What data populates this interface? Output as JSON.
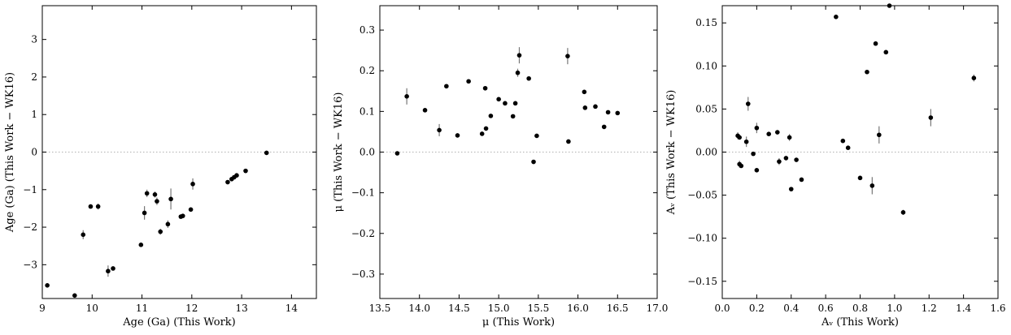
{
  "chart_data": [
    {
      "type": "scatter",
      "xlabel": "Age (Ga)   (This Work)",
      "ylabel": "Age (Ga)   (This Work − WK16)",
      "xlim": [
        9,
        14.5
      ],
      "ylim": [
        -3.9,
        3.9
      ],
      "xticks": [
        9,
        10,
        11,
        12,
        13,
        14
      ],
      "yticks": [
        -3,
        -2,
        -1,
        0,
        1,
        2,
        3
      ],
      "xticklabels": [
        "9",
        "10",
        "11",
        "12",
        "13",
        "14"
      ],
      "yticklabels": [
        "−3",
        "−2",
        "−1",
        "0",
        "1",
        "2",
        "3"
      ],
      "zero_line": 0,
      "points": [
        {
          "x": 9.1,
          "y": -3.55,
          "err": 0
        },
        {
          "x": 9.65,
          "y": -3.82,
          "err": 0
        },
        {
          "x": 9.82,
          "y": -2.2,
          "err": 0.12
        },
        {
          "x": 9.97,
          "y": -1.45,
          "err": 0
        },
        {
          "x": 10.12,
          "y": -1.45,
          "err": 0.08
        },
        {
          "x": 10.32,
          "y": -3.17,
          "err": 0.15
        },
        {
          "x": 10.42,
          "y": -3.1,
          "err": 0
        },
        {
          "x": 10.98,
          "y": -2.47,
          "err": 0
        },
        {
          "x": 11.05,
          "y": -1.62,
          "err": 0.18
        },
        {
          "x": 11.1,
          "y": -1.1,
          "err": 0.1
        },
        {
          "x": 11.26,
          "y": -1.13,
          "err": 0.08
        },
        {
          "x": 11.3,
          "y": -1.31,
          "err": 0.1
        },
        {
          "x": 11.37,
          "y": -2.12,
          "err": 0.08
        },
        {
          "x": 11.52,
          "y": -1.92,
          "err": 0.1
        },
        {
          "x": 11.58,
          "y": -1.25,
          "err": 0.28
        },
        {
          "x": 11.78,
          "y": -1.72,
          "err": 0
        },
        {
          "x": 11.82,
          "y": -1.7,
          "err": 0
        },
        {
          "x": 11.98,
          "y": -1.53,
          "err": 0
        },
        {
          "x": 12.02,
          "y": -0.85,
          "err": 0.15
        },
        {
          "x": 12.72,
          "y": -0.8,
          "err": 0
        },
        {
          "x": 12.8,
          "y": -0.72,
          "err": 0
        },
        {
          "x": 12.85,
          "y": -0.67,
          "err": 0
        },
        {
          "x": 12.9,
          "y": -0.62,
          "err": 0.06
        },
        {
          "x": 13.08,
          "y": -0.5,
          "err": 0
        },
        {
          "x": 13.5,
          "y": -0.02,
          "err": 0
        }
      ]
    },
    {
      "type": "scatter",
      "xlabel": "μ  (This Work)",
      "ylabel": "μ  (This Work − WK16)",
      "xlim": [
        13.5,
        17.0
      ],
      "ylim": [
        -0.36,
        0.36
      ],
      "xticks": [
        13.5,
        14.0,
        14.5,
        15.0,
        15.5,
        16.0,
        16.5,
        17.0
      ],
      "yticks": [
        -0.3,
        -0.2,
        -0.1,
        0.0,
        0.1,
        0.2,
        0.3
      ],
      "xticklabels": [
        "13.5",
        "14.0",
        "14.5",
        "15.0",
        "15.5",
        "16.0",
        "16.5",
        "17.0"
      ],
      "yticklabels": [
        "−0.3",
        "−0.2",
        "−0.1",
        "0.0",
        "0.1",
        "0.2",
        "0.3"
      ],
      "zero_line": 0,
      "points": [
        {
          "x": 13.72,
          "y": -0.003,
          "err": 0
        },
        {
          "x": 13.84,
          "y": 0.137,
          "err": 0.02
        },
        {
          "x": 14.07,
          "y": 0.103,
          "err": 0
        },
        {
          "x": 14.25,
          "y": 0.054,
          "err": 0.015
        },
        {
          "x": 14.34,
          "y": 0.162,
          "err": 0
        },
        {
          "x": 14.48,
          "y": 0.041,
          "err": 0
        },
        {
          "x": 14.62,
          "y": 0.174,
          "err": 0
        },
        {
          "x": 14.79,
          "y": 0.045,
          "err": 0
        },
        {
          "x": 14.83,
          "y": 0.157,
          "err": 0
        },
        {
          "x": 14.84,
          "y": 0.058,
          "err": 0
        },
        {
          "x": 14.9,
          "y": 0.089,
          "err": 0
        },
        {
          "x": 15.0,
          "y": 0.13,
          "err": 0
        },
        {
          "x": 15.08,
          "y": 0.12,
          "err": 0
        },
        {
          "x": 15.18,
          "y": 0.088,
          "err": 0
        },
        {
          "x": 15.21,
          "y": 0.12,
          "err": 0
        },
        {
          "x": 15.24,
          "y": 0.195,
          "err": 0.01
        },
        {
          "x": 15.26,
          "y": 0.238,
          "err": 0.02
        },
        {
          "x": 15.38,
          "y": 0.181,
          "err": 0
        },
        {
          "x": 15.44,
          "y": -0.024,
          "err": 0
        },
        {
          "x": 15.48,
          "y": 0.04,
          "err": 0
        },
        {
          "x": 15.87,
          "y": 0.236,
          "err": 0.02
        },
        {
          "x": 15.88,
          "y": 0.026,
          "err": 0
        },
        {
          "x": 16.08,
          "y": 0.148,
          "err": 0
        },
        {
          "x": 16.09,
          "y": 0.109,
          "err": 0
        },
        {
          "x": 16.22,
          "y": 0.112,
          "err": 0
        },
        {
          "x": 16.33,
          "y": 0.062,
          "err": 0
        },
        {
          "x": 16.38,
          "y": 0.098,
          "err": 0
        },
        {
          "x": 16.5,
          "y": 0.096,
          "err": 0
        }
      ]
    },
    {
      "type": "scatter",
      "xlabel": "Aᵥ  (This Work)",
      "ylabel": "Aᵥ  (This Work − WK16)",
      "xlim": [
        0.0,
        1.6
      ],
      "ylim": [
        -0.17,
        0.17
      ],
      "xticks": [
        0.0,
        0.2,
        0.4,
        0.6,
        0.8,
        1.0,
        1.2,
        1.4,
        1.6
      ],
      "yticks": [
        -0.15,
        -0.1,
        -0.05,
        0.0,
        0.05,
        0.1,
        0.15
      ],
      "xticklabels": [
        "0.0",
        "0.2",
        "0.4",
        "0.6",
        "0.8",
        "1.0",
        "1.2",
        "1.4",
        "1.6"
      ],
      "yticklabels": [
        "−0.15",
        "−0.10",
        "−0.05",
        "0.00",
        "0.05",
        "0.10",
        "0.15"
      ],
      "zero_line": 0,
      "points": [
        {
          "x": 0.09,
          "y": 0.019,
          "err": 0.004
        },
        {
          "x": 0.1,
          "y": 0.017,
          "err": 0
        },
        {
          "x": 0.1,
          "y": -0.014,
          "err": 0.004
        },
        {
          "x": 0.11,
          "y": -0.016,
          "err": 0
        },
        {
          "x": 0.14,
          "y": 0.012,
          "err": 0.006
        },
        {
          "x": 0.15,
          "y": 0.056,
          "err": 0.008
        },
        {
          "x": 0.18,
          "y": -0.002,
          "err": 0
        },
        {
          "x": 0.2,
          "y": 0.028,
          "err": 0.006
        },
        {
          "x": 0.2,
          "y": -0.021,
          "err": 0
        },
        {
          "x": 0.27,
          "y": 0.021,
          "err": 0
        },
        {
          "x": 0.32,
          "y": 0.023,
          "err": 0
        },
        {
          "x": 0.33,
          "y": -0.011,
          "err": 0.004
        },
        {
          "x": 0.37,
          "y": -0.007,
          "err": 0
        },
        {
          "x": 0.39,
          "y": 0.017,
          "err": 0.004
        },
        {
          "x": 0.4,
          "y": -0.043,
          "err": 0
        },
        {
          "x": 0.43,
          "y": -0.009,
          "err": 0
        },
        {
          "x": 0.46,
          "y": -0.032,
          "err": 0
        },
        {
          "x": 0.66,
          "y": 0.157,
          "err": 0
        },
        {
          "x": 0.7,
          "y": 0.013,
          "err": 0
        },
        {
          "x": 0.73,
          "y": 0.005,
          "err": 0
        },
        {
          "x": 0.8,
          "y": -0.03,
          "err": 0
        },
        {
          "x": 0.84,
          "y": 0.093,
          "err": 0
        },
        {
          "x": 0.87,
          "y": -0.039,
          "err": 0.01
        },
        {
          "x": 0.89,
          "y": 0.126,
          "err": 0
        },
        {
          "x": 0.91,
          "y": 0.02,
          "err": 0.01
        },
        {
          "x": 0.95,
          "y": 0.116,
          "err": 0
        },
        {
          "x": 0.97,
          "y": 0.17,
          "err": 0
        },
        {
          "x": 1.05,
          "y": -0.07,
          "err": 0.003
        },
        {
          "x": 1.21,
          "y": 0.04,
          "err": 0.01
        },
        {
          "x": 1.46,
          "y": 0.086,
          "err": 0.004
        }
      ]
    }
  ]
}
